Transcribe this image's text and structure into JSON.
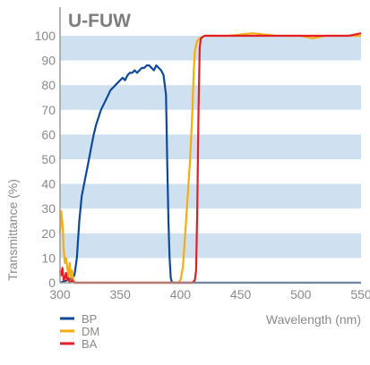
{
  "chart_data": {
    "type": "line",
    "title": "U-FUW",
    "xlabel": "Wavelength (nm)",
    "ylabel": "Transmittance (%)",
    "xlim": [
      300,
      550
    ],
    "ylim": [
      0,
      100
    ],
    "x_ticks": [
      "300",
      "350",
      "400",
      "450",
      "500",
      "550"
    ],
    "y_ticks": [
      "0",
      "10",
      "20",
      "30",
      "40",
      "50",
      "60",
      "70",
      "80",
      "90",
      "100"
    ],
    "grid": "horizontal bands",
    "band_color": "#cfe1f0",
    "legend_position": "bottom-left",
    "series": [
      {
        "name": "BP",
        "color": "#0e4a9c",
        "points": [
          [
            300,
            0
          ],
          [
            306,
            1
          ],
          [
            310,
            2
          ],
          [
            312,
            3
          ],
          [
            314,
            10
          ],
          [
            316,
            25
          ],
          [
            318,
            35
          ],
          [
            320,
            40
          ],
          [
            322,
            45
          ],
          [
            324,
            50
          ],
          [
            326,
            55
          ],
          [
            328,
            60
          ],
          [
            330,
            64
          ],
          [
            332,
            67
          ],
          [
            334,
            70
          ],
          [
            336,
            72
          ],
          [
            338,
            74
          ],
          [
            340,
            76
          ],
          [
            342,
            78
          ],
          [
            344,
            79
          ],
          [
            346,
            80
          ],
          [
            348,
            81
          ],
          [
            350,
            82
          ],
          [
            352,
            83
          ],
          [
            354,
            82
          ],
          [
            356,
            84
          ],
          [
            358,
            85
          ],
          [
            360,
            85
          ],
          [
            362,
            86
          ],
          [
            364,
            85
          ],
          [
            366,
            86
          ],
          [
            368,
            87
          ],
          [
            370,
            87
          ],
          [
            372,
            88
          ],
          [
            374,
            88
          ],
          [
            376,
            87
          ],
          [
            378,
            86
          ],
          [
            380,
            88
          ],
          [
            382,
            87
          ],
          [
            384,
            86
          ],
          [
            386,
            84
          ],
          [
            388,
            76
          ],
          [
            389,
            50
          ],
          [
            390,
            25
          ],
          [
            391,
            10
          ],
          [
            392,
            2
          ],
          [
            393,
            0
          ],
          [
            550,
            0
          ]
        ]
      },
      {
        "name": "DM",
        "color": "#f5ad12",
        "points": [
          [
            300,
            20
          ],
          [
            301,
            29
          ],
          [
            302,
            24
          ],
          [
            303,
            14
          ],
          [
            304,
            8
          ],
          [
            305,
            10
          ],
          [
            306,
            6
          ],
          [
            307,
            3
          ],
          [
            308,
            8
          ],
          [
            309,
            2
          ],
          [
            310,
            5
          ],
          [
            311,
            1
          ],
          [
            312,
            0
          ],
          [
            398,
            0
          ],
          [
            400,
            1
          ],
          [
            402,
            6
          ],
          [
            404,
            20
          ],
          [
            406,
            35
          ],
          [
            408,
            50
          ],
          [
            410,
            70
          ],
          [
            411,
            85
          ],
          [
            412,
            94
          ],
          [
            414,
            98
          ],
          [
            416,
            99
          ],
          [
            420,
            100
          ],
          [
            440,
            100
          ],
          [
            460,
            101
          ],
          [
            480,
            100
          ],
          [
            490,
            100
          ],
          [
            500,
            100
          ],
          [
            510,
            99
          ],
          [
            520,
            100
          ],
          [
            530,
            100
          ],
          [
            540,
            100
          ],
          [
            550,
            100
          ]
        ]
      },
      {
        "name": "BA",
        "color": "#e01f26",
        "points": [
          [
            300,
            5
          ],
          [
            301,
            3
          ],
          [
            302,
            6
          ],
          [
            303,
            1
          ],
          [
            304,
            2
          ],
          [
            305,
            4
          ],
          [
            306,
            1
          ],
          [
            307,
            2
          ],
          [
            308,
            0
          ],
          [
            310,
            1
          ],
          [
            312,
            0
          ],
          [
            410,
            0
          ],
          [
            412,
            1
          ],
          [
            413,
            5
          ],
          [
            414,
            30
          ],
          [
            415,
            70
          ],
          [
            416,
            95
          ],
          [
            417,
            99
          ],
          [
            420,
            100
          ],
          [
            440,
            100
          ],
          [
            460,
            100
          ],
          [
            480,
            100
          ],
          [
            500,
            100
          ],
          [
            520,
            100
          ],
          [
            540,
            100
          ],
          [
            550,
            101
          ]
        ]
      }
    ]
  }
}
